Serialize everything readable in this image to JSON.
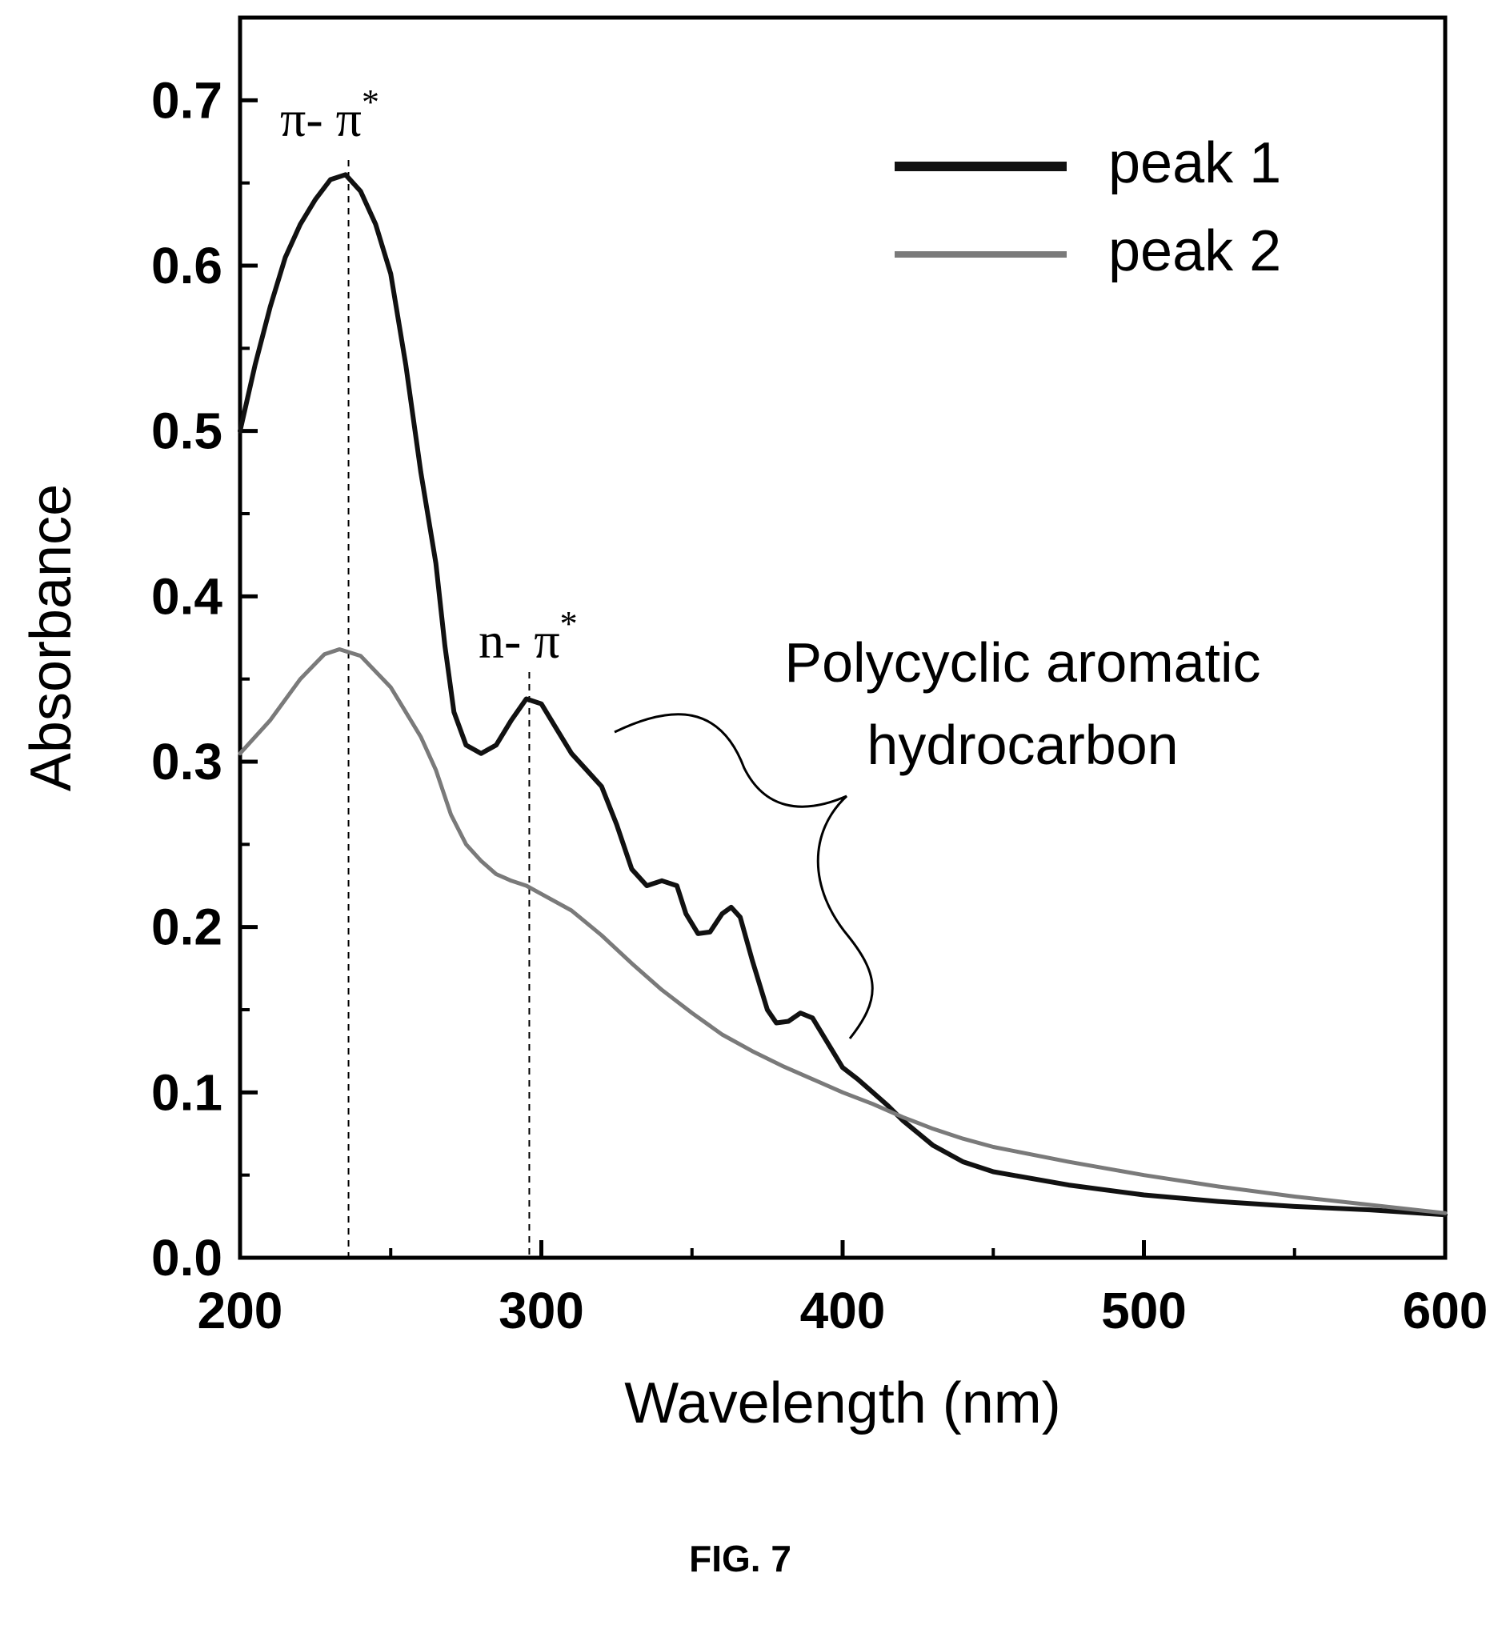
{
  "chart_data": {
    "type": "line",
    "title": "",
    "xlabel": "Wavelength (nm)",
    "ylabel": "Absorbance",
    "xlim": [
      200,
      600
    ],
    "ylim": [
      0.0,
      0.75
    ],
    "x_ticks": [
      "200",
      "300",
      "400",
      "500",
      "600"
    ],
    "y_ticks": [
      "0.0",
      "0.1",
      "0.2",
      "0.3",
      "0.4",
      "0.5",
      "0.6",
      "0.7"
    ],
    "grid": false,
    "legend_position": "top-right",
    "series": [
      {
        "name": "peak 1",
        "color": "#111111",
        "points": [
          [
            200,
            0.5
          ],
          [
            205,
            0.54
          ],
          [
            210,
            0.575
          ],
          [
            215,
            0.605
          ],
          [
            220,
            0.625
          ],
          [
            225,
            0.64
          ],
          [
            230,
            0.652
          ],
          [
            235,
            0.655
          ],
          [
            240,
            0.645
          ],
          [
            245,
            0.625
          ],
          [
            250,
            0.595
          ],
          [
            255,
            0.54
          ],
          [
            260,
            0.475
          ],
          [
            265,
            0.42
          ],
          [
            268,
            0.37
          ],
          [
            271,
            0.33
          ],
          [
            275,
            0.31
          ],
          [
            280,
            0.305
          ],
          [
            285,
            0.31
          ],
          [
            290,
            0.325
          ],
          [
            295,
            0.338
          ],
          [
            300,
            0.335
          ],
          [
            305,
            0.32
          ],
          [
            310,
            0.305
          ],
          [
            315,
            0.295
          ],
          [
            320,
            0.285
          ],
          [
            325,
            0.262
          ],
          [
            330,
            0.235
          ],
          [
            335,
            0.225
          ],
          [
            340,
            0.228
          ],
          [
            345,
            0.225
          ],
          [
            348,
            0.208
          ],
          [
            352,
            0.196
          ],
          [
            356,
            0.197
          ],
          [
            360,
            0.208
          ],
          [
            363,
            0.212
          ],
          [
            366,
            0.206
          ],
          [
            370,
            0.18
          ],
          [
            375,
            0.15
          ],
          [
            378,
            0.142
          ],
          [
            382,
            0.143
          ],
          [
            386,
            0.148
          ],
          [
            390,
            0.145
          ],
          [
            395,
            0.13
          ],
          [
            400,
            0.115
          ],
          [
            405,
            0.108
          ],
          [
            410,
            0.1
          ],
          [
            415,
            0.092
          ],
          [
            420,
            0.083
          ],
          [
            430,
            0.068
          ],
          [
            440,
            0.058
          ],
          [
            450,
            0.052
          ],
          [
            475,
            0.044
          ],
          [
            500,
            0.038
          ],
          [
            525,
            0.034
          ],
          [
            550,
            0.031
          ],
          [
            575,
            0.029
          ],
          [
            600,
            0.026
          ]
        ]
      },
      {
        "name": "peak 2",
        "color": "#7a7a7a",
        "points": [
          [
            200,
            0.305
          ],
          [
            210,
            0.325
          ],
          [
            220,
            0.35
          ],
          [
            228,
            0.365
          ],
          [
            233,
            0.368
          ],
          [
            240,
            0.364
          ],
          [
            250,
            0.345
          ],
          [
            260,
            0.315
          ],
          [
            265,
            0.295
          ],
          [
            270,
            0.268
          ],
          [
            275,
            0.25
          ],
          [
            280,
            0.24
          ],
          [
            285,
            0.232
          ],
          [
            290,
            0.228
          ],
          [
            295,
            0.225
          ],
          [
            300,
            0.22
          ],
          [
            310,
            0.21
          ],
          [
            320,
            0.195
          ],
          [
            330,
            0.178
          ],
          [
            340,
            0.162
          ],
          [
            350,
            0.148
          ],
          [
            360,
            0.135
          ],
          [
            370,
            0.125
          ],
          [
            380,
            0.116
          ],
          [
            390,
            0.108
          ],
          [
            400,
            0.1
          ],
          [
            410,
            0.093
          ],
          [
            420,
            0.085
          ],
          [
            430,
            0.078
          ],
          [
            440,
            0.072
          ],
          [
            450,
            0.067
          ],
          [
            475,
            0.058
          ],
          [
            500,
            0.05
          ],
          [
            525,
            0.043
          ],
          [
            550,
            0.037
          ],
          [
            575,
            0.032
          ],
          [
            600,
            0.027
          ]
        ]
      }
    ],
    "annotations": {
      "pi_pi_star": {
        "text": "π- π",
        "sup": "*",
        "x": 236
      },
      "n_pi_star": {
        "text": "n- π",
        "sup": "*",
        "x": 296
      },
      "pah_line1": "Polycyclic aromatic",
      "pah_line2": "hydrocarbon"
    }
  },
  "caption": "FIG. 7"
}
